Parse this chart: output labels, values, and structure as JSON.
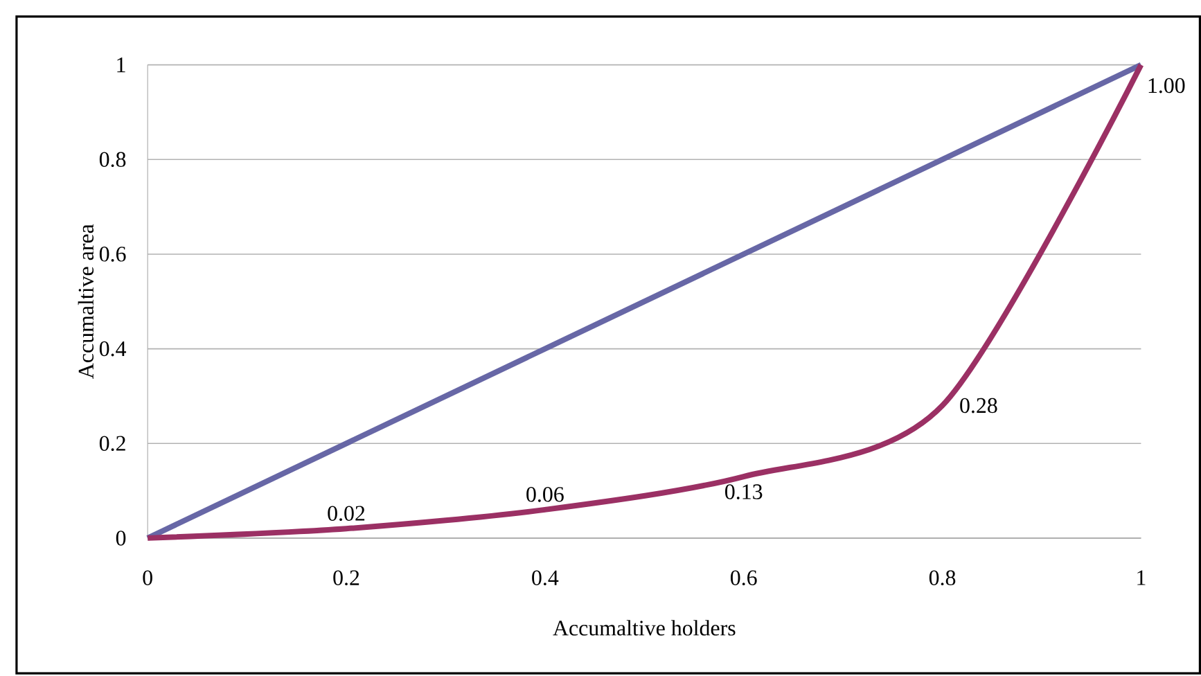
{
  "chart_data": {
    "type": "line",
    "xlabel": "Accumaltive holders",
    "ylabel": "Accumaltive area",
    "xlim": [
      0,
      1
    ],
    "ylim": [
      0,
      1
    ],
    "xticks": [
      0,
      0.2,
      0.4,
      0.6,
      0.8,
      1
    ],
    "yticks": [
      0,
      0.2,
      0.4,
      0.6,
      0.8,
      1
    ],
    "grid": "y",
    "marker": "none",
    "series": [
      {
        "color": "#6767a6",
        "x": [
          0,
          1
        ],
        "values": [
          0,
          1
        ]
      },
      {
        "color": "#9b3064",
        "x": [
          0,
          0.2,
          0.4,
          0.6,
          0.8,
          1
        ],
        "values": [
          0,
          0.02,
          0.06,
          0.13,
          0.28,
          1.0
        ],
        "value_labels": [
          null,
          "0.02",
          "0.06",
          "0.13",
          "0.28",
          "1.00"
        ]
      }
    ]
  }
}
